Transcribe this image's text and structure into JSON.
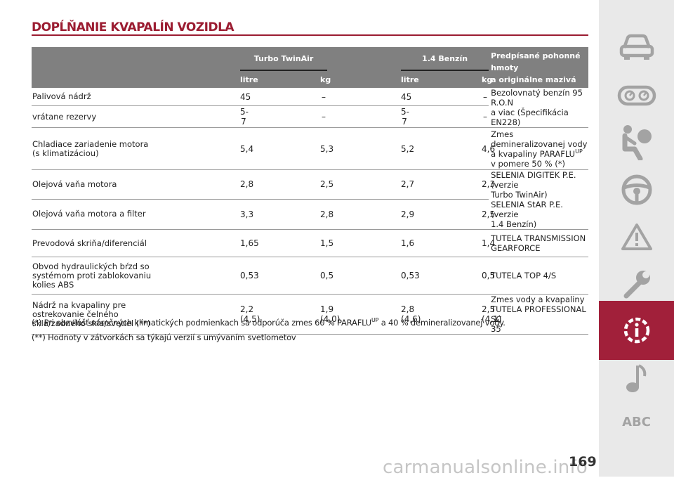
{
  "page": {
    "title": "DOPĹŇANIE KVAPALÍN VOZIDLA",
    "number": "169",
    "watermark": "carmanualsonline.info"
  },
  "table": {
    "headers": {
      "group1": "Turbo TwinAir",
      "group2": "1.4 Benzín",
      "spec": [
        "Predpísané pohonné hmoty",
        "a originálne mazivá"
      ],
      "units": [
        "litre",
        "kg",
        "litre",
        "kg"
      ]
    },
    "rows": [
      {
        "label": [
          "Palivová nádrž"
        ],
        "values": [
          "45",
          "–",
          "45",
          "–"
        ]
      },
      {
        "label": [
          "vrátane rezervy"
        ],
        "values": [
          "5- 7",
          "–",
          "5- 7",
          "–"
        ]
      },
      {
        "label": [
          "Chladiace zariadenie motora",
          "(s klimatizáciou)"
        ],
        "values": [
          "5,4",
          "5,3",
          "5,2",
          "4,6"
        ]
      },
      {
        "label": [
          "Olejová vaňa motora"
        ],
        "values": [
          "2,8",
          "2,5",
          "2,7",
          "2,3"
        ]
      },
      {
        "label": [
          "Olejová vaňa motora a filter"
        ],
        "values": [
          "3,3",
          "2,8",
          "2,9",
          "2,5"
        ]
      },
      {
        "label": [
          "Prevodová skriňa/diferenciál"
        ],
        "values": [
          "1,65",
          "1,5",
          "1,6",
          "1,4"
        ]
      },
      {
        "label": [
          "Obvod hydraulických bŕzd so",
          "systémom proti zablokovaniu",
          "kolies ABS"
        ],
        "values": [
          "0,53",
          "0,5",
          "0,53",
          "0,5"
        ]
      },
      {
        "label": [
          "Nádrž na kvapaliny pre",
          "ostrekovanie čelného",
          "skla/zadného skla/svetiel (**)"
        ],
        "values": [
          "2,2 (4,5)",
          "1,9 (4,0)",
          "2,8 (4,6)",
          "2,5 (4,1)"
        ]
      }
    ],
    "specs": {
      "fuel": [
        "Bezolovnatý benzín 95 R.O.N",
        "a viac (Špecifikácia EN228)"
      ],
      "coolant": {
        "line1": "Zmes demineralizovanej vody",
        "line2": "a kvapaliny PARAFLU",
        "sup": "UP",
        "line3": "v pomere 50 % (*)"
      },
      "oil": [
        "SELENIA DIGITEK P.E. (verzie",
        "Turbo TwinAir)",
        "SELENIA StAR P.E. (verzie",
        "1.4 Benzín)"
      ],
      "gearbox": [
        "TUTELA TRANSMISSION",
        "GEARFORCE"
      ],
      "brake": [
        "TUTELA TOP 4/S"
      ],
      "washer": [
        "Zmes vody a kvapaliny",
        "TUTELA PROFESSIONAL SC",
        "35"
      ]
    }
  },
  "footnotes": {
    "note1": {
      "before": "(*) Pri obzvlášť náročných klimatických podmienkach sa odporúča zmes 60 % PARAFLU",
      "sup": "UP",
      "after": " a 40 % demineralizovanej vody."
    },
    "note2": "(**) Hodnoty v zátvorkách sa týkajú verzií s umývaním svetlometov"
  },
  "sidebar": {
    "items": [
      {
        "icon": "car-icon"
      },
      {
        "icon": "dashboard-icon"
      },
      {
        "icon": "seat-airbag-icon"
      },
      {
        "icon": "steering-wheel-icon"
      },
      {
        "icon": "warning-triangle-icon"
      },
      {
        "icon": "wrench-icon"
      },
      {
        "icon": "technical-data-icon",
        "active": true
      },
      {
        "icon": "music-note-icon"
      },
      {
        "icon": "index-abc-icon",
        "label": "ABC"
      }
    ],
    "colors": {
      "background": "#e9e9e9",
      "active": "#a1203a",
      "icon": "#a3a3a3"
    }
  }
}
